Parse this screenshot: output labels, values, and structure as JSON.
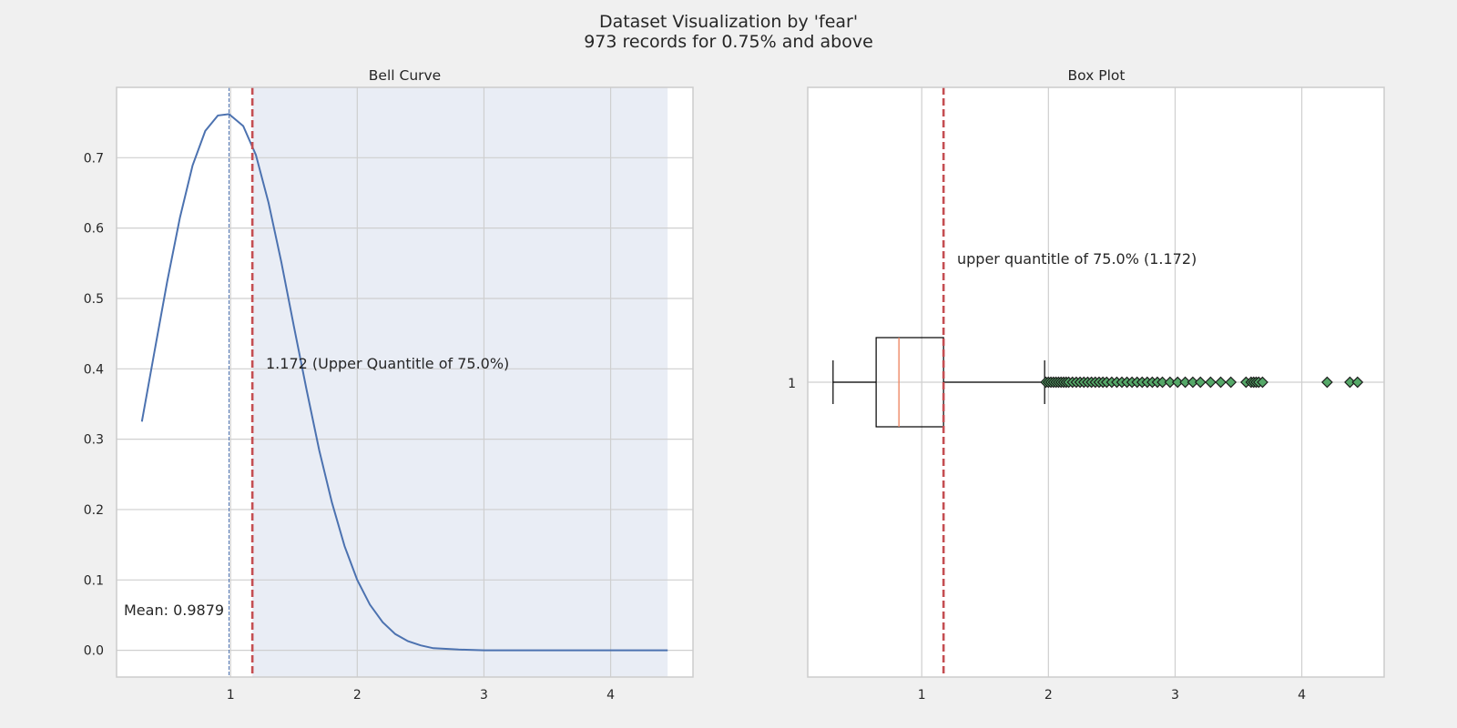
{
  "figure": {
    "title_line1": "Dataset Visualization by 'fear'",
    "title_line2": "973 records for 0.75% and above"
  },
  "colors": {
    "background": "#f0f0f0",
    "axes_face": "#ffffff",
    "shade": "#e9edf5",
    "grid": "#cfcfcf",
    "curve": "#4c72b0",
    "threshold": "#c44e52",
    "median": "#ee8866",
    "outlier": "#55a868"
  },
  "chart_data": [
    {
      "type": "line",
      "title": "Bell Curve",
      "xlabel": "",
      "ylabel": "",
      "xlim": [
        0.1,
        4.65
      ],
      "ylim": [
        -0.038,
        0.8
      ],
      "xticks": [
        1,
        2,
        3,
        4
      ],
      "yticks": [
        0.0,
        0.1,
        0.2,
        0.3,
        0.4,
        0.5,
        0.6,
        0.7
      ],
      "grid": true,
      "series": [
        {
          "x": [
            0.3,
            0.4,
            0.5,
            0.6,
            0.7,
            0.8,
            0.9,
            0.9879,
            1.1,
            1.2,
            1.3,
            1.4,
            1.5,
            1.6,
            1.7,
            1.8,
            1.9,
            2.0,
            2.1,
            2.2,
            2.3,
            2.4,
            2.5,
            2.6,
            2.8,
            3.0,
            3.5,
            4.0,
            4.45
          ],
          "y": [
            0.325,
            0.425,
            0.524,
            0.615,
            0.689,
            0.738,
            0.76,
            0.762,
            0.745,
            0.704,
            0.636,
            0.552,
            0.46,
            0.37,
            0.284,
            0.21,
            0.148,
            0.1,
            0.065,
            0.04,
            0.023,
            0.013,
            0.007,
            0.003,
            0.001,
            0.0,
            0.0,
            0.0,
            0.0
          ]
        }
      ],
      "mean": 0.9879,
      "threshold": 1.172,
      "shaded_region": [
        1.172,
        4.45
      ],
      "annotations": {
        "mean_label": "Mean: 0.9879",
        "threshold_label": "1.172 (Upper Quantitle of 75.0%)"
      }
    },
    {
      "type": "box",
      "title": "Box Plot",
      "xlim": [
        0.1,
        4.65
      ],
      "xticks": [
        1,
        2,
        3,
        4
      ],
      "ytick_label": "1",
      "grid": true,
      "whisker_low": 0.3,
      "q1": 0.64,
      "median": 0.82,
      "q3": 1.172,
      "whisker_high": 1.97,
      "threshold": 1.172,
      "outliers": [
        1.98,
        2.0,
        2.02,
        2.04,
        2.06,
        2.08,
        2.1,
        2.12,
        2.14,
        2.16,
        2.19,
        2.22,
        2.25,
        2.28,
        2.31,
        2.34,
        2.37,
        2.4,
        2.43,
        2.46,
        2.5,
        2.54,
        2.58,
        2.62,
        2.66,
        2.7,
        2.74,
        2.78,
        2.82,
        2.86,
        2.9,
        2.96,
        3.02,
        3.08,
        3.14,
        3.2,
        3.28,
        3.36,
        3.44,
        3.56,
        3.6,
        3.62,
        3.64,
        3.66,
        3.69,
        4.2,
        4.38,
        4.44
      ],
      "annotations": {
        "threshold_label": "upper quantitle of 75.0% (1.172)"
      }
    }
  ]
}
